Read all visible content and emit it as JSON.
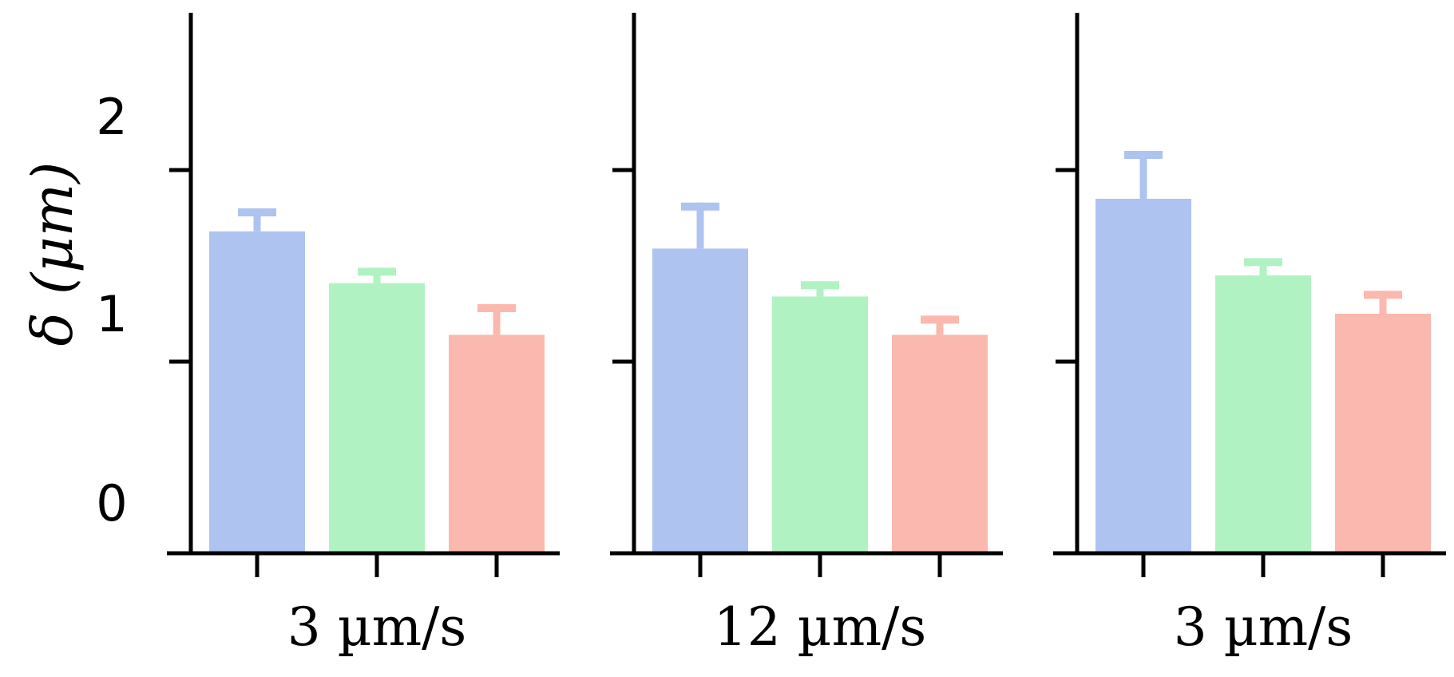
{
  "chart_data": {
    "type": "bar",
    "ylabel": "δ (μm)",
    "yticks": [
      "0",
      "1",
      "2"
    ],
    "ylim": [
      0,
      2.8
    ],
    "colors": [
      "#aec3ef",
      "#b1f2c3",
      "#fbb8ae"
    ],
    "panels": [
      {
        "category": "3 µm/s",
        "values": [
          1.68,
          1.41,
          1.14
        ],
        "errors": [
          0.12,
          0.08,
          0.16
        ]
      },
      {
        "category": "12 µm/s",
        "values": [
          1.59,
          1.34,
          1.14
        ],
        "errors": [
          0.24,
          0.08,
          0.1
        ]
      },
      {
        "category": "3 µm/s",
        "values": [
          1.85,
          1.45,
          1.25
        ],
        "errors": [
          0.25,
          0.09,
          0.12
        ]
      }
    ]
  }
}
